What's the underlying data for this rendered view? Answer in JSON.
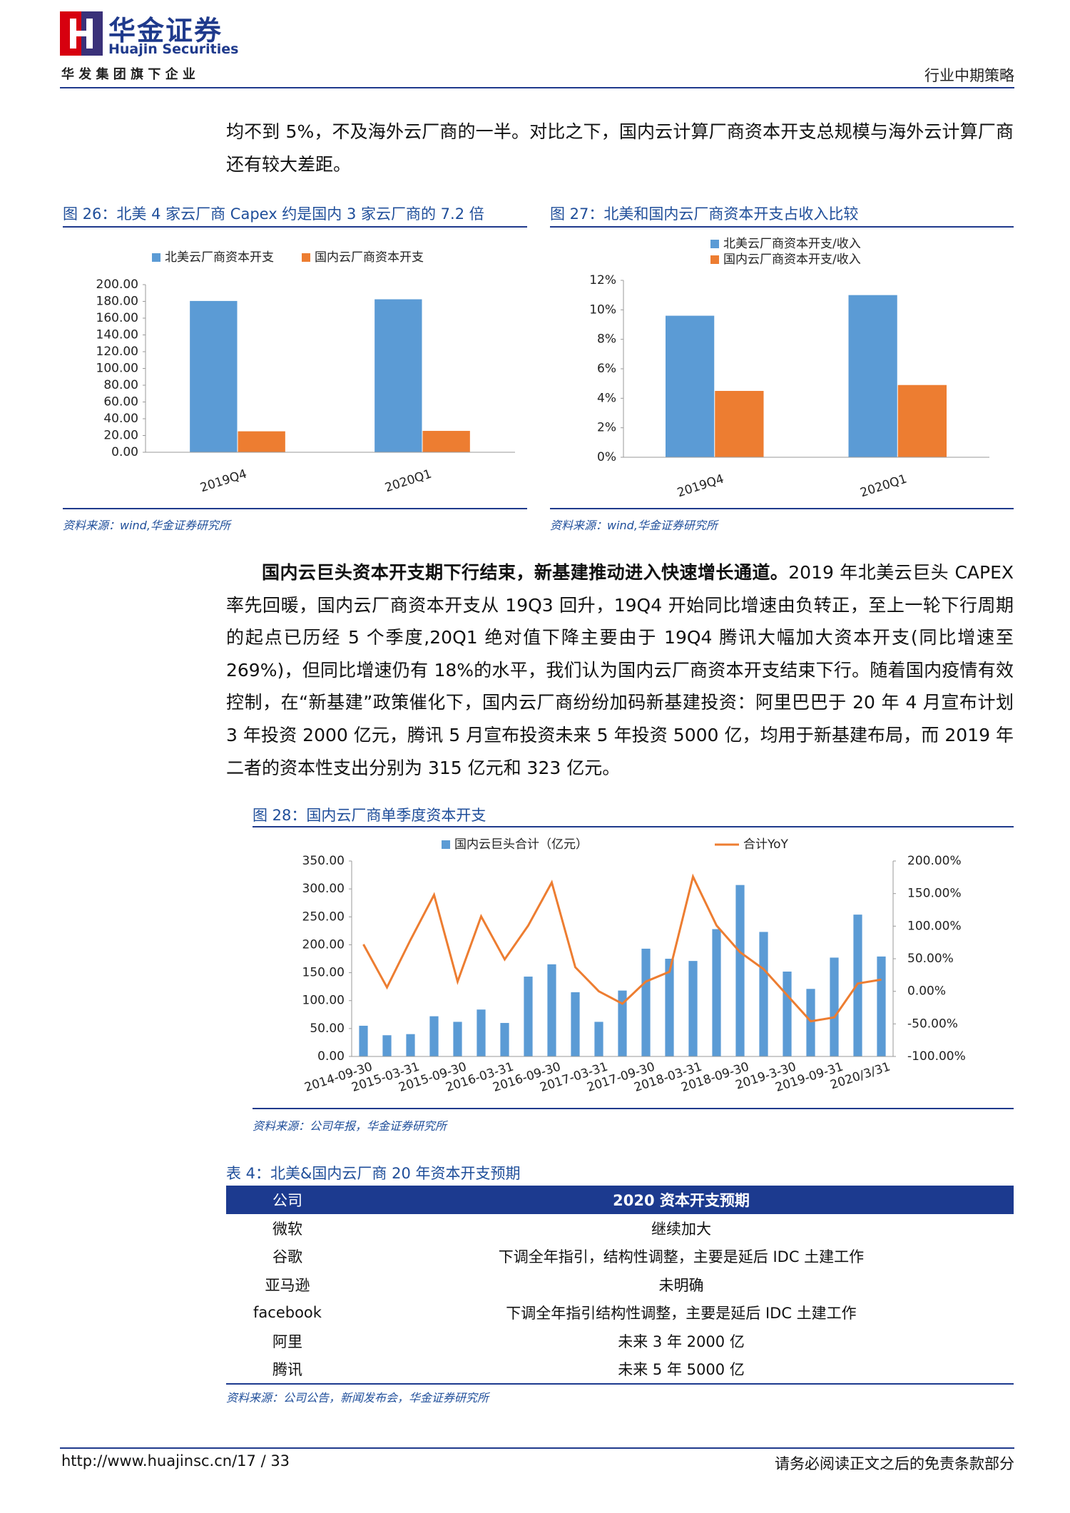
{
  "header": {
    "logo_cn": "华金证券",
    "logo_en": "Huajin Securities",
    "group": "华 发 集 团 旗 下 企 业",
    "section": "行业中期策略"
  },
  "paragraphs": [
    {
      "text": "均不到 5%，不及海外云厂商的一半。对比之下，国内云计算厂商资本开支总规模与海外云计算厂商还有较大差距。"
    },
    {
      "lead": "国内云巨头资本开支期下行结束，新基建推动进入快速增长通道。",
      "text": "2019 年北美云巨头 CAPEX 率先回暖，国内云厂商资本开支从 19Q3 回升，19Q4 开始同比增速由负转正，至上一轮下行周期的起点已历经 5 个季度,20Q1 绝对值下降主要由于 19Q4 腾讯大幅加大资本开支(同比增速至 269%)，但同比增速仍有 18%的水平，我们认为国内云厂商资本开支结束下行。随着国内疫情有效控制，在“新基建”政策催化下，国内云厂商纷纷加码新基建投资：阿里巴巴于 20 年 4 月宣布计划 3 年投资 2000 亿元，腾讯 5 月宣布投资未来 5 年投资 5000 亿，均用于新基建布局，而 2019 年二者的资本性支出分别为 315 亿元和 323 亿元。"
    }
  ],
  "chart_data": [
    {
      "type": "bar",
      "title": "图 26：北美 4 家云厂商 Capex 约是国内 3 家云厂商的 7.2 倍",
      "source": "资料来源：wind,华金证券研究所",
      "categories": [
        "2019Q4",
        "2020Q1"
      ],
      "series": [
        {
          "name": "北美云厂商资本开支",
          "color": "#5b9bd5",
          "values": [
            180.5,
            182.5
          ]
        },
        {
          "name": "国内云厂商资本开支",
          "color": "#ed7d31",
          "values": [
            25.0,
            25.5
          ]
        }
      ],
      "ylim": [
        0,
        200
      ],
      "yticks": [
        {
          "value": 0,
          "label": "0.00"
        },
        {
          "value": 20,
          "label": "20.00"
        },
        {
          "value": 40,
          "label": "40.00"
        },
        {
          "value": 60,
          "label": "60.00"
        },
        {
          "value": 80,
          "label": "80.00"
        },
        {
          "value": 100,
          "label": "100.00"
        },
        {
          "value": 120,
          "label": "120.00"
        },
        {
          "value": 140,
          "label": "140.00"
        },
        {
          "value": 160,
          "label": "160.00"
        },
        {
          "value": 180,
          "label": "180.00"
        },
        {
          "value": 200,
          "label": "200.00"
        }
      ],
      "grid": false,
      "legend": "top"
    },
    {
      "type": "bar",
      "title": "图 27：北美和国内云厂商资本开支占收入比较",
      "source": "资料来源：wind,华金证券研究所",
      "categories": [
        "2019Q4",
        "2020Q1"
      ],
      "series": [
        {
          "name": "北美云厂商资本开支/收入",
          "color": "#5b9bd5",
          "values": [
            9.6,
            11.0
          ]
        },
        {
          "name": "国内云厂商资本开支/收入",
          "color": "#ed7d31",
          "values": [
            4.5,
            4.9
          ]
        }
      ],
      "ylim": [
        0,
        12
      ],
      "yticks": [
        {
          "value": 0,
          "label": "0%"
        },
        {
          "value": 2,
          "label": "2%"
        },
        {
          "value": 4,
          "label": "4%"
        },
        {
          "value": 6,
          "label": "6%"
        },
        {
          "value": 8,
          "label": "8%"
        },
        {
          "value": 10,
          "label": "10%"
        },
        {
          "value": 12,
          "label": "12%"
        }
      ],
      "grid": false,
      "legend": "top-left"
    },
    {
      "type": "combo",
      "title": "图 28：国内云厂商单季度资本开支",
      "source": "资料来源：公司年报，华金证券研究所",
      "categories": [
        "2014-09-30",
        null,
        "2015-03-31",
        null,
        "2015-09-30",
        null,
        "2016-03-31",
        null,
        "2016-09-30",
        null,
        "2017-03-31",
        null,
        "2017-09-30",
        null,
        "2018-03-31",
        null,
        "2018-09-30",
        null,
        "2019-3-30",
        null,
        "2019-09-31",
        null,
        "2020/3/31"
      ],
      "series": [
        {
          "name": "国内云巨头合计（亿元）",
          "color": "#5b9bd5",
          "kind": "bar",
          "axis": "y",
          "values": [
            55,
            38,
            40,
            72,
            62,
            84,
            60,
            143,
            165,
            115,
            62,
            118,
            193,
            175,
            171,
            228,
            307,
            223,
            152,
            121,
            177,
            254,
            179
          ]
        },
        {
          "name": "合计YoY",
          "color": "#ed7d31",
          "kind": "line",
          "axis": "y2",
          "values": [
            72,
            6,
            79,
            148,
            15,
            115,
            49,
            101,
            167,
            37,
            0,
            -19,
            15,
            30,
            176,
            101,
            60,
            34,
            -6,
            -46,
            -40,
            12,
            18
          ]
        }
      ],
      "ylim": [
        0,
        350
      ],
      "yticks": [
        {
          "value": 0,
          "label": "0.00"
        },
        {
          "value": 50,
          "label": "50.00"
        },
        {
          "value": 100,
          "label": "100.00"
        },
        {
          "value": 150,
          "label": "150.00"
        },
        {
          "value": 200,
          "label": "200.00"
        },
        {
          "value": 250,
          "label": "250.00"
        },
        {
          "value": 300,
          "label": "300.00"
        },
        {
          "value": 350,
          "label": "350.00"
        }
      ],
      "y2lim": [
        -100,
        200
      ],
      "y2ticks": [
        {
          "value": -100,
          "label": "-100.00%"
        },
        {
          "value": -50,
          "label": "-50.00%"
        },
        {
          "value": 0,
          "label": "0.00%"
        },
        {
          "value": 50,
          "label": "50.00%"
        },
        {
          "value": 100,
          "label": "100.00%"
        },
        {
          "value": 150,
          "label": "150.00%"
        },
        {
          "value": 200,
          "label": "200.00%"
        }
      ],
      "grid": false,
      "legend": "top"
    }
  ],
  "table": {
    "caption": "表 4：北美&国内云厂商 20 年资本开支预期",
    "header": [
      "公司",
      "2020 资本开支预期"
    ],
    "rows": [
      [
        "微软",
        "继续加大"
      ],
      [
        "谷歌",
        "下调全年指引，结构性调整，主要是延后 IDC 土建工作"
      ],
      [
        "亚马逊",
        "未明确"
      ],
      [
        "facebook",
        "下调全年指引结构性调整，主要是延后 IDC 土建工作"
      ],
      [
        "阿里",
        "未来 3 年 2000 亿"
      ],
      [
        "腾讯",
        "未来 5 年 5000 亿"
      ]
    ],
    "source": "资料来源：公司公告，新闻发布会，华金证券研究所"
  },
  "footer": {
    "url": "http://www.huajinsc.cn/17 / 33",
    "disclaimer": "请务必阅读正文之后的免责条款部分"
  }
}
